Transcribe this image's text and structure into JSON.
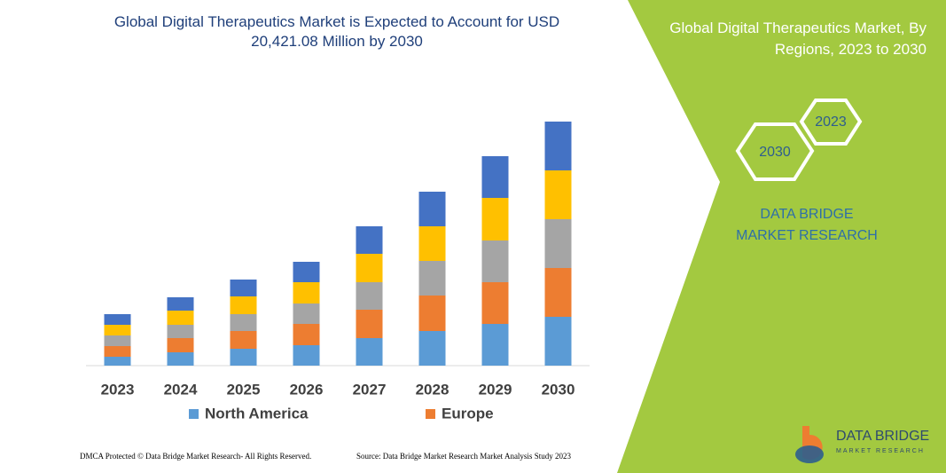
{
  "chart_data": {
    "type": "bar",
    "stacked": true,
    "title": "Global Digital Therapeutics Market is Expected to Account for USD 20,421.08 Million by 2030",
    "categories": [
      "2023",
      "2024",
      "2025",
      "2026",
      "2027",
      "2028",
      "2029",
      "2030"
    ],
    "series": [
      {
        "name": "North America",
        "color": "#5b9bd5",
        "values": [
          10,
          15,
          19,
          23,
          31,
          39,
          47,
          55
        ]
      },
      {
        "name": "Europe",
        "color": "#ed7d31",
        "values": [
          12,
          16,
          20,
          24,
          32,
          40,
          47,
          55
        ]
      },
      {
        "color": "#a5a5a5",
        "values": [
          12,
          15,
          19,
          23,
          31,
          39,
          47,
          55
        ]
      },
      {
        "color": "#ffc000",
        "values": [
          12,
          16,
          20,
          24,
          32,
          39,
          48,
          55
        ]
      },
      {
        "color": "#4472c4",
        "values": [
          12,
          15,
          19,
          23,
          31,
          39,
          47,
          55
        ]
      }
    ],
    "ylim": [
      0,
      300
    ]
  },
  "side_panel": {
    "title": "Global Digital Therapeutics Market, By Regions, 2023 to 2030",
    "hex_start": "2023",
    "hex_end": "2030",
    "brand": "DATA BRIDGE MARKET RESEARCH"
  },
  "footer": {
    "left": "DMCA Protected © Data Bridge Market Research- All Rights Reserved.",
    "right": "Source: Data Bridge Market Research Market Analysis Study 2023"
  },
  "logo": {
    "name": "DATA BRIDGE",
    "tagline": "MARKET RESEARCH"
  }
}
